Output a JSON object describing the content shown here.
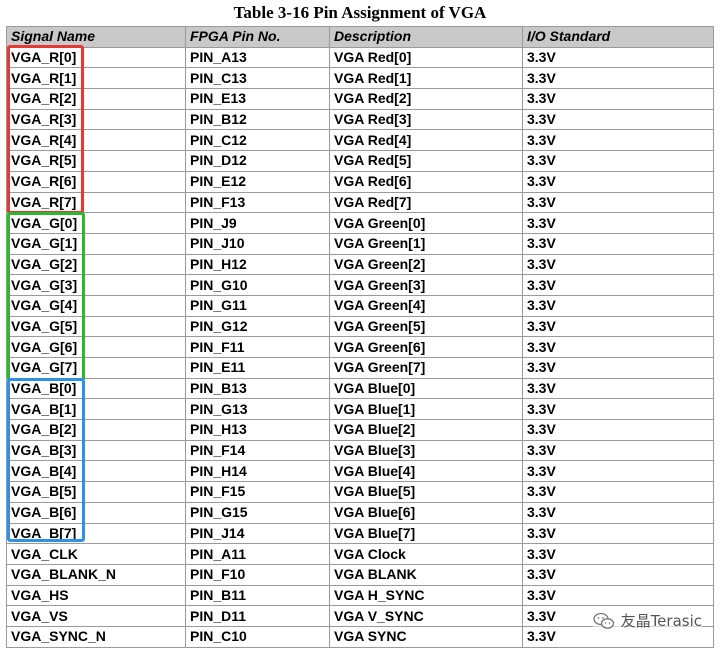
{
  "caption": "Table 3-16 Pin Assignment of VGA",
  "headers": [
    "Signal Name",
    "FPGA Pin No.",
    "Description",
    "I/O Standard"
  ],
  "rows": [
    [
      "VGA_R[0]",
      "PIN_A13",
      "VGA Red[0]",
      "3.3V"
    ],
    [
      "VGA_R[1]",
      "PIN_C13",
      "VGA Red[1]",
      "3.3V"
    ],
    [
      "VGA_R[2]",
      "PIN_E13",
      "VGA Red[2]",
      "3.3V"
    ],
    [
      "VGA_R[3]",
      "PIN_B12",
      "VGA Red[3]",
      "3.3V"
    ],
    [
      "VGA_R[4]",
      "PIN_C12",
      "VGA Red[4]",
      "3.3V"
    ],
    [
      "VGA_R[5]",
      "PIN_D12",
      "VGA Red[5]",
      "3.3V"
    ],
    [
      "VGA_R[6]",
      "PIN_E12",
      "VGA Red[6]",
      "3.3V"
    ],
    [
      "VGA_R[7]",
      "PIN_F13",
      "VGA Red[7]",
      "3.3V"
    ],
    [
      "VGA_G[0]",
      "PIN_J9",
      "VGA Green[0]",
      "3.3V"
    ],
    [
      "VGA_G[1]",
      "PIN_J10",
      "VGA Green[1]",
      "3.3V"
    ],
    [
      "VGA_G[2]",
      "PIN_H12",
      "VGA Green[2]",
      "3.3V"
    ],
    [
      "VGA_G[3]",
      "PIN_G10",
      "VGA Green[3]",
      "3.3V"
    ],
    [
      "VGA_G[4]",
      "PIN_G11",
      "VGA Green[4]",
      "3.3V"
    ],
    [
      "VGA_G[5]",
      "PIN_G12",
      "VGA Green[5]",
      "3.3V"
    ],
    [
      "VGA_G[6]",
      "PIN_F11",
      "VGA Green[6]",
      "3.3V"
    ],
    [
      "VGA_G[7]",
      "PIN_E11",
      "VGA Green[7]",
      "3.3V"
    ],
    [
      "VGA_B[0]",
      "PIN_B13",
      "VGA Blue[0]",
      "3.3V"
    ],
    [
      "VGA_B[1]",
      "PIN_G13",
      "VGA Blue[1]",
      "3.3V"
    ],
    [
      "VGA_B[2]",
      "PIN_H13",
      "VGA Blue[2]",
      "3.3V"
    ],
    [
      "VGA_B[3]",
      "PIN_F14",
      "VGA Blue[3]",
      "3.3V"
    ],
    [
      "VGA_B[4]",
      "PIN_H14",
      "VGA Blue[4]",
      "3.3V"
    ],
    [
      "VGA_B[5]",
      "PIN_F15",
      "VGA Blue[5]",
      "3.3V"
    ],
    [
      "VGA_B[6]",
      "PIN_G15",
      "VGA Blue[6]",
      "3.3V"
    ],
    [
      "VGA_B[7]",
      "PIN_J14",
      "VGA Blue[7]",
      "3.3V"
    ],
    [
      "VGA_CLK",
      "PIN_A11",
      "VGA Clock",
      "3.3V"
    ],
    [
      "VGA_BLANK_N",
      "PIN_F10",
      "VGA BLANK",
      "3.3V"
    ],
    [
      "VGA_HS",
      "PIN_B11",
      "VGA H_SYNC",
      "3.3V"
    ],
    [
      "VGA_VS",
      "PIN_D11",
      "VGA V_SYNC",
      "3.3V"
    ],
    [
      "VGA_SYNC_N",
      "PIN_C10",
      "VGA SYNC",
      "3.3V"
    ]
  ],
  "highlight_colors": {
    "red_group": "#e53935",
    "green_group": "#2db92d",
    "blue_group": "#2e90e8"
  },
  "header_bg": "#c9c9c9",
  "watermark": {
    "text": "友晶Terasic",
    "icon": "wechat-icon"
  }
}
